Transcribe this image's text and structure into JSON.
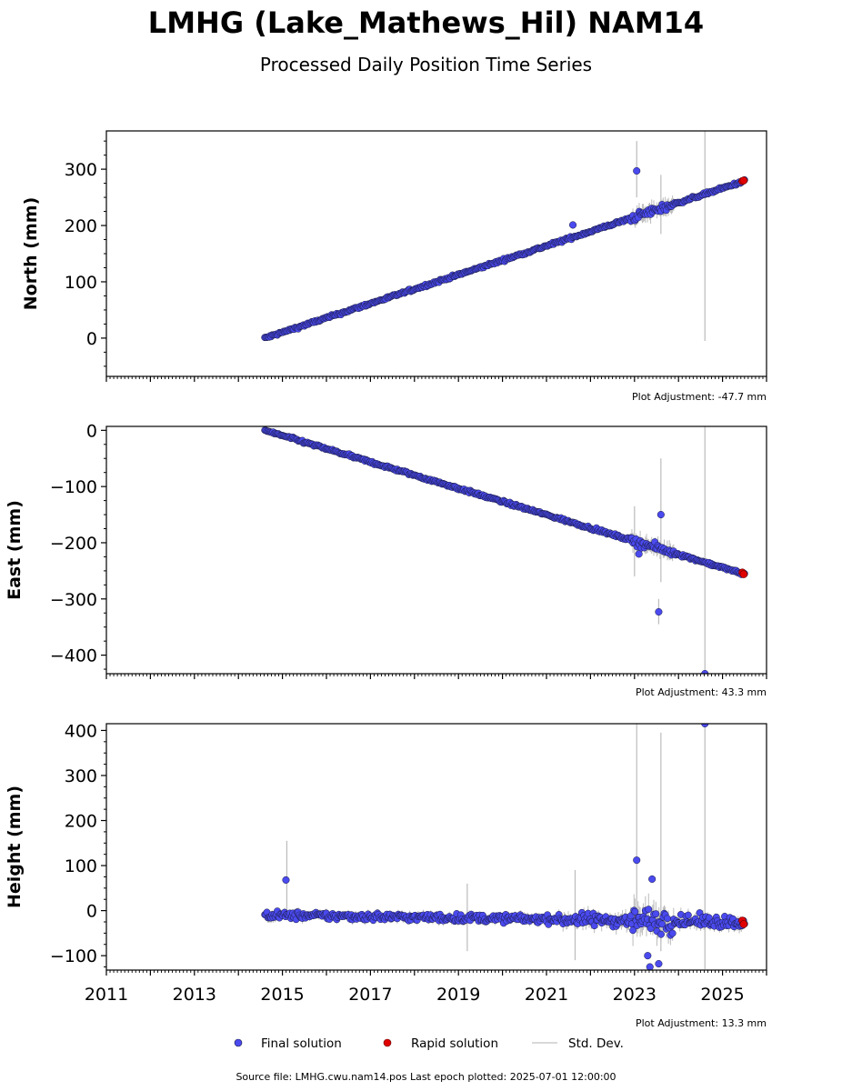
{
  "header": {
    "title": "LMHG (Lake_Mathews_Hil) NAM14",
    "subtitle": "Processed Daily Position Time Series"
  },
  "legend": {
    "final": "Final solution",
    "rapid": "Rapid solution",
    "stddev": "Std. Dev."
  },
  "footer": {
    "source": "Source file: LMHG.cwu.nam14.pos  Last epoch plotted: 2025-07-01 12:00:00"
  },
  "colors": {
    "final": "#4a4aef",
    "rapid": "#e00000",
    "stddev": "#bbbbbb",
    "edge": "#1a1a40"
  },
  "chart_data": [
    {
      "type": "scatter",
      "ylabel": "North (mm)",
      "plot_adjustment": "Plot Adjustment: -47.7 mm",
      "xlim": [
        2011.0,
        2026.0
      ],
      "ylim": [
        -68,
        368
      ],
      "yticks": [
        0,
        100,
        200,
        300
      ],
      "ytick_labels": [
        "0",
        "100",
        "200",
        "300"
      ],
      "trend": {
        "x_start": 2014.6,
        "x_end": 2025.5,
        "y_start": 0,
        "y_end": 279
      },
      "outliers": [
        {
          "x": 2023.05,
          "y": 297
        },
        {
          "x": 2021.6,
          "y": 201
        }
      ],
      "tall_errorbars": [
        {
          "x": 2024.6,
          "low": -5,
          "high": 368
        },
        {
          "x": 2023.05,
          "low": 250,
          "high": 350
        },
        {
          "x": 2023.6,
          "low": 185,
          "high": 290
        }
      ],
      "rapid_points": [
        {
          "x": 2025.45,
          "y": 279
        },
        {
          "x": 2025.48,
          "y": 280
        }
      ]
    },
    {
      "type": "scatter",
      "ylabel": "East (mm)",
      "plot_adjustment": "Plot Adjustment: 43.3 mm",
      "xlim": [
        2011.0,
        2026.0
      ],
      "ylim": [
        -433,
        7
      ],
      "yticks": [
        0,
        -100,
        -200,
        -300,
        -400
      ],
      "ytick_labels": [
        "0",
        "−100",
        "−200",
        "−300",
        "−400"
      ],
      "trend": {
        "x_start": 2014.6,
        "x_end": 2025.5,
        "y_start": 0,
        "y_end": -256
      },
      "outliers": [
        {
          "x": 2023.55,
          "y": -323
        },
        {
          "x": 2024.6,
          "y": -433
        },
        {
          "x": 2023.6,
          "y": -150
        },
        {
          "x": 2023.1,
          "y": -220
        }
      ],
      "tall_errorbars": [
        {
          "x": 2024.6,
          "low": -433,
          "high": 7
        },
        {
          "x": 2023.6,
          "low": -270,
          "high": -50
        },
        {
          "x": 2023.0,
          "low": -260,
          "high": -135
        },
        {
          "x": 2023.55,
          "low": -345,
          "high": -300
        }
      ],
      "rapid_points": [
        {
          "x": 2025.45,
          "y": -253
        },
        {
          "x": 2025.48,
          "y": -256
        }
      ]
    },
    {
      "type": "scatter",
      "ylabel": "Height (mm)",
      "plot_adjustment": "Plot Adjustment: 13.3 mm",
      "xlim": [
        2011.0,
        2026.0
      ],
      "ylim": [
        -132,
        415
      ],
      "yticks": [
        -100,
        0,
        100,
        200,
        300,
        400
      ],
      "ytick_labels": [
        "−100",
        "0",
        "100",
        "200",
        "300",
        "400"
      ],
      "xticks": [
        2011,
        2013,
        2015,
        2017,
        2019,
        2021,
        2023,
        2025
      ],
      "xtick_labels": [
        "2011",
        "2013",
        "2015",
        "2017",
        "2019",
        "2021",
        "2023",
        "2025"
      ],
      "trend": {
        "x_start": 2014.6,
        "x_end": 2025.5,
        "y_start": -10,
        "y_end": -25
      },
      "outliers": [
        {
          "x": 2015.08,
          "y": 68
        },
        {
          "x": 2023.05,
          "y": 112
        },
        {
          "x": 2024.6,
          "y": 415
        },
        {
          "x": 2023.4,
          "y": 70
        },
        {
          "x": 2023.3,
          "y": -100
        },
        {
          "x": 2023.55,
          "y": -118
        },
        {
          "x": 2023.35,
          "y": -125
        }
      ],
      "tall_errorbars": [
        {
          "x": 2015.1,
          "low": 0,
          "high": 155
        },
        {
          "x": 2023.05,
          "low": -20,
          "high": 415
        },
        {
          "x": 2023.6,
          "low": -90,
          "high": 395
        },
        {
          "x": 2024.6,
          "low": -130,
          "high": 415
        },
        {
          "x": 2021.65,
          "low": -110,
          "high": 90
        },
        {
          "x": 2019.2,
          "low": -90,
          "high": 60
        }
      ],
      "rapid_points": [
        {
          "x": 2025.45,
          "y": -22
        },
        {
          "x": 2025.48,
          "y": -30
        }
      ]
    }
  ]
}
